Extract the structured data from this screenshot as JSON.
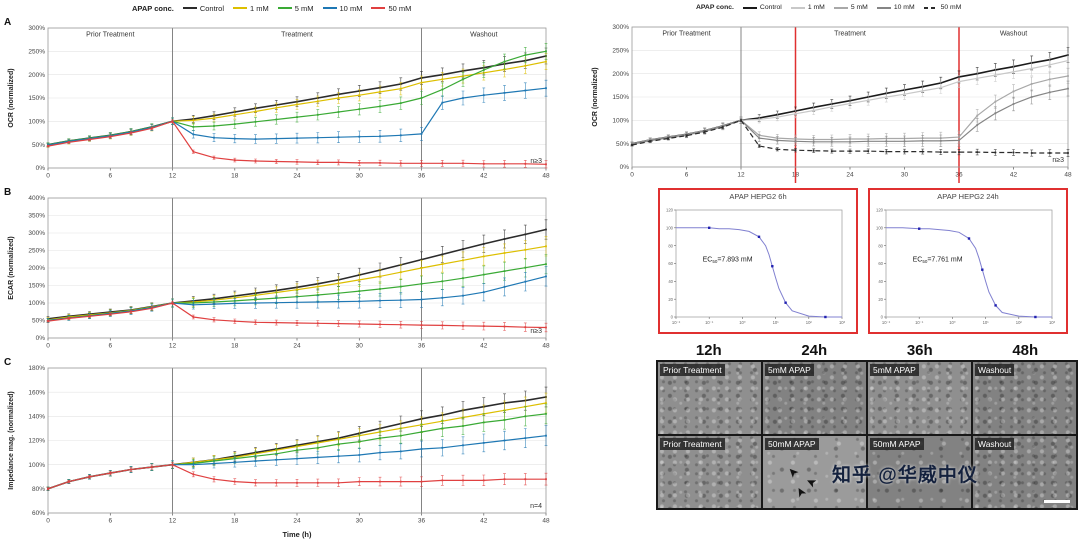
{
  "panels": [
    "A",
    "B",
    "C"
  ],
  "legend_left": {
    "title": "APAP conc.",
    "items": [
      {
        "label": "Control",
        "color": "#2b2b2b"
      },
      {
        "label": "1 mM",
        "color": "#ddbf00"
      },
      {
        "label": "5 mM",
        "color": "#3aaa35"
      },
      {
        "label": "10 mM",
        "color": "#1f78b4"
      },
      {
        "label": "50 mM",
        "color": "#e04040"
      }
    ]
  },
  "legend_right": {
    "title": "APAP conc.",
    "items": [
      {
        "label": "Control",
        "color": "#1a1a1a"
      },
      {
        "label": "1 mM",
        "color": "#c8c8c8"
      },
      {
        "label": "5 mM",
        "color": "#a8a8a8"
      },
      {
        "label": "10 mM",
        "color": "#858585"
      },
      {
        "label": "50 mM",
        "color": "#2b2b2b",
        "dash": true
      }
    ]
  },
  "chart_data": [
    {
      "type": "line",
      "panel": "A",
      "ylabel": "OCR (normalized)",
      "xlabel": "",
      "xlim": [
        0,
        48
      ],
      "ylim": [
        0,
        300
      ],
      "yticks": [
        0,
        50,
        100,
        150,
        200,
        250,
        300
      ],
      "xticks": [
        0,
        6,
        12,
        18,
        24,
        30,
        36,
        42,
        48
      ],
      "boundaries": [
        12,
        36
      ],
      "phase_labels": [
        {
          "text": "Prior Treatment",
          "x": 6
        },
        {
          "text": "Treatment",
          "x": 24
        },
        {
          "text": "Washout",
          "x": 42
        }
      ],
      "n_label": "n≥3",
      "err_base": 4,
      "err_grow": 0.55,
      "x": [
        0,
        2,
        4,
        6,
        8,
        10,
        12,
        14,
        16,
        18,
        20,
        22,
        24,
        26,
        28,
        30,
        32,
        34,
        36,
        38,
        40,
        42,
        44,
        46,
        48
      ],
      "series": [
        {
          "name": "Control",
          "color": "#2b2b2b",
          "width": 1.6,
          "values": [
            50,
            58,
            64,
            70,
            78,
            88,
            100,
            105,
            112,
            120,
            128,
            135,
            142,
            150,
            158,
            165,
            172,
            180,
            193,
            200,
            208,
            215,
            223,
            230,
            240
          ]
        },
        {
          "name": "1 mM",
          "color": "#ddbf00",
          "width": 1.2,
          "values": [
            48,
            56,
            62,
            68,
            76,
            86,
            100,
            102,
            107,
            114,
            121,
            129,
            136,
            143,
            150,
            156,
            163,
            170,
            183,
            190,
            197,
            204,
            211,
            219,
            228
          ]
        },
        {
          "name": "5 mM",
          "color": "#3aaa35",
          "width": 1.2,
          "values": [
            50,
            58,
            64,
            70,
            78,
            88,
            100,
            88,
            90,
            94,
            99,
            104,
            109,
            114,
            120,
            126,
            132,
            139,
            150,
            168,
            190,
            210,
            228,
            242,
            250
          ]
        },
        {
          "name": "10 mM",
          "color": "#1f78b4",
          "width": 1.2,
          "values": [
            49,
            57,
            63,
            69,
            77,
            87,
            100,
            72,
            65,
            63,
            62,
            63,
            64,
            65,
            66,
            67,
            68,
            70,
            73,
            140,
            150,
            156,
            161,
            166,
            171
          ]
        },
        {
          "name": "50 mM",
          "color": "#e04040",
          "width": 1.2,
          "err_scale": 0.45,
          "values": [
            47,
            55,
            61,
            67,
            75,
            85,
            100,
            35,
            22,
            17,
            15,
            14,
            13,
            12,
            12,
            11,
            11,
            10,
            10,
            10,
            10,
            9,
            9,
            9,
            8
          ]
        }
      ]
    },
    {
      "type": "line",
      "panel": "B",
      "ylabel": "ECAR (normalized)",
      "xlabel": "",
      "xlim": [
        0,
        48
      ],
      "ylim": [
        0,
        400
      ],
      "yticks": [
        0,
        50,
        100,
        150,
        200,
        250,
        300,
        350,
        400
      ],
      "xticks": [
        0,
        6,
        12,
        18,
        24,
        30,
        36,
        42,
        48
      ],
      "boundaries": [
        12,
        36
      ],
      "n_label": "n≥3",
      "err_base": 6,
      "err_grow": 0.9,
      "x": [
        0,
        2,
        4,
        6,
        8,
        10,
        12,
        14,
        16,
        18,
        20,
        22,
        24,
        26,
        28,
        30,
        32,
        34,
        36,
        38,
        40,
        42,
        44,
        46,
        48
      ],
      "series": [
        {
          "name": "Control",
          "color": "#2b2b2b",
          "width": 1.6,
          "values": [
            55,
            62,
            68,
            74,
            80,
            90,
            100,
            106,
            112,
            120,
            128,
            136,
            145,
            155,
            166,
            180,
            194,
            209,
            224,
            239,
            254,
            269,
            283,
            296,
            310
          ]
        },
        {
          "name": "1 mM",
          "color": "#ddbf00",
          "width": 1.2,
          "values": [
            52,
            60,
            66,
            72,
            79,
            89,
            100,
            103,
            108,
            115,
            122,
            130,
            138,
            147,
            156,
            166,
            176,
            188,
            200,
            211,
            222,
            233,
            243,
            252,
            262
          ]
        },
        {
          "name": "5 mM",
          "color": "#3aaa35",
          "width": 1.2,
          "values": [
            50,
            58,
            64,
            71,
            78,
            88,
            100,
            100,
            103,
            106,
            110,
            114,
            118,
            123,
            128,
            134,
            140,
            147,
            155,
            162,
            171,
            181,
            191,
            201,
            211
          ]
        },
        {
          "name": "10 mM",
          "color": "#1f78b4",
          "width": 1.2,
          "values": [
            50,
            57,
            63,
            70,
            77,
            87,
            100,
            95,
            97,
            99,
            100,
            101,
            102,
            103,
            104,
            105,
            107,
            108,
            110,
            115,
            121,
            131,
            146,
            161,
            176
          ]
        },
        {
          "name": "50 mM",
          "color": "#e04040",
          "width": 1.2,
          "err_scale": 0.45,
          "values": [
            48,
            56,
            62,
            68,
            75,
            85,
            100,
            60,
            52,
            48,
            45,
            44,
            43,
            42,
            41,
            40,
            39,
            38,
            37,
            36,
            35,
            34,
            33,
            31,
            30
          ]
        }
      ]
    },
    {
      "type": "line",
      "panel": "C",
      "ylabel": "Impedance mag. (normalized)",
      "xlabel": "Time (h)",
      "xlim": [
        0,
        48
      ],
      "ylim": [
        60,
        180
      ],
      "yticks": [
        60,
        80,
        100,
        120,
        140,
        160,
        180
      ],
      "xticks": [
        0,
        6,
        12,
        18,
        24,
        30,
        36,
        42,
        48
      ],
      "boundaries": [
        12,
        36
      ],
      "n_label": "n=4",
      "err_base": 1.5,
      "err_grow": 0.28,
      "x": [
        0,
        2,
        4,
        6,
        8,
        10,
        12,
        14,
        16,
        18,
        20,
        22,
        24,
        26,
        28,
        30,
        32,
        34,
        36,
        38,
        40,
        42,
        44,
        46,
        48
      ],
      "series": [
        {
          "name": "Control",
          "color": "#2b2b2b",
          "width": 1.6,
          "values": [
            80,
            86,
            90,
            93,
            96,
            98,
            100,
            102,
            104,
            107,
            110,
            113,
            116,
            119,
            122,
            126,
            130,
            134,
            138,
            141,
            145,
            148,
            151,
            153,
            156
          ]
        },
        {
          "name": "1 mM",
          "color": "#ddbf00",
          "width": 1.2,
          "values": [
            80,
            86,
            90,
            93,
            96,
            98,
            100,
            102,
            104,
            106,
            109,
            112,
            115,
            118,
            121,
            124,
            127,
            130,
            133,
            136,
            139,
            142,
            145,
            148,
            151
          ]
        },
        {
          "name": "5 mM",
          "color": "#3aaa35",
          "width": 1.2,
          "values": [
            80,
            86,
            90,
            93,
            96,
            98,
            100,
            101,
            103,
            105,
            107,
            109,
            112,
            114,
            117,
            119,
            122,
            124,
            127,
            130,
            132,
            135,
            137,
            140,
            142
          ]
        },
        {
          "name": "10 mM",
          "color": "#1f78b4",
          "width": 1.2,
          "values": [
            80,
            86,
            90,
            93,
            96,
            98,
            100,
            100,
            101,
            102,
            103,
            104,
            105,
            106,
            107,
            108,
            110,
            111,
            113,
            114,
            116,
            118,
            120,
            122,
            124
          ]
        },
        {
          "name": "50 mM",
          "color": "#e04040",
          "width": 1.2,
          "err_scale": 0.6,
          "values": [
            80,
            86,
            90,
            93,
            96,
            98,
            100,
            92,
            88,
            86,
            85,
            85,
            85,
            85,
            85,
            86,
            86,
            86,
            86,
            87,
            87,
            87,
            88,
            88,
            88
          ]
        }
      ]
    },
    {
      "type": "line",
      "panel": "",
      "ylabel": "OCR (normalized)",
      "xlabel": "",
      "xlim": [
        0,
        48
      ],
      "ylim": [
        0,
        300
      ],
      "yticks": [
        0,
        50,
        100,
        150,
        200,
        250,
        300
      ],
      "xticks": [
        0,
        6,
        12,
        18,
        24,
        30,
        36,
        42,
        48
      ],
      "boundaries": [
        12,
        36
      ],
      "red_lines": [
        18,
        36
      ],
      "phase_labels": [
        {
          "text": "Prior Treatment",
          "x": 6
        },
        {
          "text": "Treatment",
          "x": 24
        },
        {
          "text": "Washout",
          "x": 42
        }
      ],
      "n_label": "n≥3",
      "err_base": 4,
      "err_grow": 0.5,
      "x": [
        0,
        2,
        4,
        6,
        8,
        10,
        12,
        14,
        16,
        18,
        20,
        22,
        24,
        26,
        28,
        30,
        32,
        34,
        36,
        38,
        40,
        42,
        44,
        46,
        48
      ],
      "series": [
        {
          "name": "Control",
          "color": "#1a1a1a",
          "width": 1.6,
          "values": [
            50,
            58,
            64,
            70,
            78,
            88,
            100,
            105,
            112,
            120,
            128,
            135,
            142,
            150,
            158,
            165,
            172,
            180,
            193,
            200,
            208,
            215,
            223,
            230,
            240
          ]
        },
        {
          "name": "1 mM",
          "color": "#c8c8c8",
          "width": 1.2,
          "values": [
            48,
            56,
            62,
            68,
            76,
            86,
            100,
            102,
            107,
            114,
            121,
            129,
            136,
            143,
            150,
            156,
            163,
            170,
            183,
            190,
            197,
            204,
            211,
            219,
            228
          ]
        },
        {
          "name": "5 mM",
          "color": "#a8a8a8",
          "width": 1.2,
          "values": [
            50,
            58,
            64,
            70,
            78,
            88,
            100,
            68,
            62,
            60,
            59,
            59,
            60,
            60,
            61,
            61,
            62,
            62,
            64,
            110,
            140,
            162,
            178,
            188,
            195
          ]
        },
        {
          "name": "10 mM",
          "color": "#858585",
          "width": 1.2,
          "values": [
            49,
            57,
            63,
            69,
            77,
            87,
            100,
            62,
            57,
            55,
            54,
            54,
            54,
            55,
            55,
            55,
            56,
            56,
            57,
            90,
            115,
            135,
            150,
            160,
            168
          ]
        },
        {
          "name": "50 mM",
          "color": "#2b2b2b",
          "width": 1.2,
          "dash": true,
          "err_scale": 0.45,
          "values": [
            47,
            55,
            61,
            67,
            75,
            85,
            100,
            45,
            38,
            36,
            35,
            34,
            34,
            34,
            33,
            33,
            33,
            32,
            32,
            32,
            31,
            31,
            30,
            30,
            30
          ]
        }
      ]
    },
    {
      "type": "dose_response",
      "title": "APAP HEPG2 6h",
      "xlim_log": [
        -2,
        3
      ],
      "ylim": [
        0,
        120
      ],
      "yticks": [
        0,
        20,
        40,
        60,
        80,
        100,
        120
      ],
      "xtick_vals": [
        -2,
        -1,
        0,
        1,
        2,
        3
      ],
      "xtick_labels": [
        "10⁻²",
        "10⁻¹",
        "10⁰",
        "10¹",
        "10²",
        "10³"
      ],
      "x_log": [
        -2,
        -1.5,
        -1,
        -0.7,
        -0.4,
        -0.1,
        0.2,
        0.5,
        0.7,
        0.8,
        0.9,
        1.0,
        1.1,
        1.3,
        1.5,
        2,
        2.5,
        3
      ],
      "values": [
        100,
        100,
        100,
        99,
        99,
        98,
        96,
        90,
        80,
        70,
        57,
        44,
        32,
        16,
        7,
        1,
        0,
        0
      ],
      "marker_idx": [
        2,
        7,
        10,
        13,
        16
      ],
      "line_color": "#8080d0",
      "marker_color": "#2020b0",
      "ec50": {
        "prefix": "EC",
        "sub": "50",
        "value": "=7.893 mM"
      },
      "ann": {
        "x": -1.2,
        "y": 62
      }
    },
    {
      "type": "dose_response",
      "title": "APAP HEPG2 24h",
      "xlim_log": [
        -2,
        3
      ],
      "ylim": [
        0,
        120
      ],
      "yticks": [
        0,
        20,
        40,
        60,
        80,
        100,
        120
      ],
      "xtick_vals": [
        -2,
        -1,
        0,
        1,
        2,
        3
      ],
      "xtick_labels": [
        "10⁻²",
        "10⁻¹",
        "10⁰",
        "10¹",
        "10²",
        "10³"
      ],
      "x_log": [
        -2,
        -1.5,
        -1,
        -0.7,
        -0.4,
        -0.1,
        0.2,
        0.5,
        0.7,
        0.8,
        0.9,
        1.0,
        1.1,
        1.3,
        1.5,
        2,
        2.5,
        3
      ],
      "values": [
        100,
        100,
        99,
        99,
        98,
        97,
        95,
        88,
        77,
        66,
        53,
        40,
        28,
        13,
        5,
        1,
        0,
        0
      ],
      "marker_idx": [
        2,
        7,
        10,
        13,
        16
      ],
      "line_color": "#8080d0",
      "marker_color": "#2020b0",
      "ec50": {
        "prefix": "EC",
        "sub": "50",
        "value": "=7.761 mM"
      },
      "ann": {
        "x": -1.2,
        "y": 62
      }
    }
  ],
  "microscopy": {
    "times": [
      "12h",
      "24h",
      "36h",
      "48h"
    ],
    "rows": [
      [
        "Prior Treatment",
        "5mM APAP",
        "5mM APAP",
        "Washout"
      ],
      [
        "Prior Treatment",
        "50mM APAP",
        "50mM APAP",
        "Washout"
      ]
    ]
  },
  "watermark": {
    "brand": "知乎",
    "handle": "@华威中仪"
  },
  "icons": {
    "arrow": "➤"
  }
}
